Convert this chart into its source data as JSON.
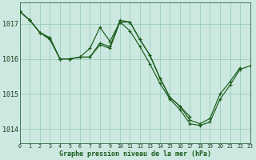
{
  "title": "Graphe pression niveau de la mer (hPa)",
  "bg_color": "#cce8e0",
  "grid_color": "#99ccbb",
  "line_color": "#1a5c1a",
  "ylabel_ticks": [
    1014,
    1015,
    1016,
    1017
  ],
  "xlim": [
    0,
    23
  ],
  "ylim": [
    1013.6,
    1017.6
  ],
  "series": [
    {
      "x": [
        0,
        1,
        2,
        3,
        4,
        5,
        6,
        7,
        8,
        9,
        10,
        11,
        12,
        13,
        14,
        15,
        16,
        17,
        18,
        19,
        20,
        21,
        22
      ],
      "y": [
        1017.35,
        1017.1,
        1016.75,
        1016.6,
        1016.0,
        1016.0,
        1016.05,
        1016.05,
        1016.45,
        1016.35,
        1017.1,
        1017.05,
        1016.55,
        1016.1,
        1015.45,
        1014.9,
        1014.65,
        1014.25,
        1014.15,
        1014.3,
        1015.0,
        1015.35,
        1015.75
      ]
    },
    {
      "x": [
        0,
        1,
        2,
        3,
        4,
        5,
        6,
        7,
        8,
        9,
        10,
        11,
        12,
        13,
        14,
        15,
        16,
        17
      ],
      "y": [
        1017.35,
        1017.1,
        1016.75,
        1016.6,
        1016.0,
        1016.0,
        1016.05,
        1016.3,
        1016.9,
        1016.5,
        1017.05,
        1017.05,
        1016.55,
        1016.1,
        1015.45,
        1014.9,
        1014.65,
        1014.35
      ]
    },
    {
      "x": [
        0,
        1,
        2,
        3,
        4,
        5,
        6,
        7,
        8,
        9,
        10,
        11,
        12,
        13,
        14,
        15,
        16,
        17,
        18,
        19,
        20,
        21,
        22,
        23
      ],
      "y": [
        1017.35,
        1017.1,
        1016.75,
        1016.55,
        1016.0,
        1016.0,
        1016.05,
        1016.05,
        1016.4,
        1016.3,
        1017.05,
        1016.8,
        1016.35,
        1015.85,
        1015.3,
        1014.85,
        1014.55,
        1014.15,
        1014.1,
        1014.2,
        1014.85,
        1015.25,
        1015.7,
        1015.8
      ]
    }
  ]
}
